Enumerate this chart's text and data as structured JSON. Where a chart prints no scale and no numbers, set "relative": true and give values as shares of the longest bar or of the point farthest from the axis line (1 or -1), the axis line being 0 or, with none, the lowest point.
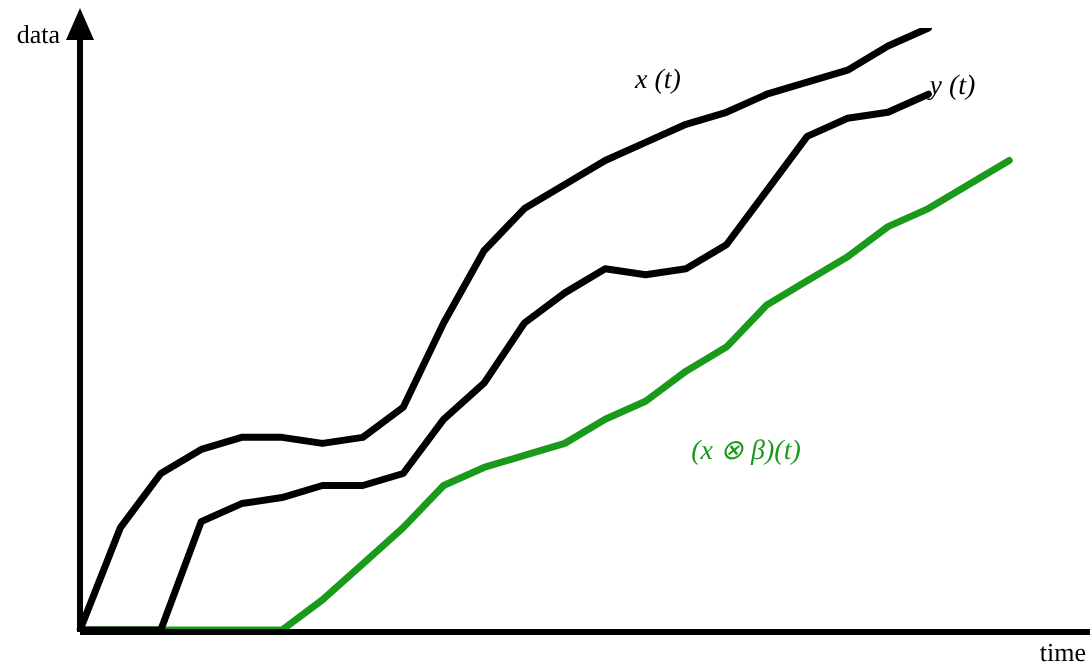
{
  "chart_data": {
    "type": "line",
    "relative": true,
    "xlabel": "time",
    "ylabel": "data",
    "legend": false,
    "marker": "none",
    "line_style": "solid",
    "categories": [
      null,
      null,
      null,
      null,
      null,
      null,
      null,
      null,
      null,
      null,
      null,
      null,
      null,
      null,
      null,
      null,
      null,
      null,
      null,
      null,
      null,
      null,
      null,
      null,
      null,
      null
    ],
    "series": [
      {
        "name": "x (t)",
        "color": "#000000",
        "values": [
          0,
          0.17,
          0.26,
          0.3,
          0.32,
          0.32,
          0.31,
          0.32,
          0.37,
          0.51,
          0.63,
          0.7,
          0.74,
          0.78,
          0.81,
          0.84,
          0.86,
          0.89,
          0.91,
          0.93,
          0.97,
          1.0,
          null,
          null,
          null,
          null
        ]
      },
      {
        "name": "y (t)",
        "color": "#000000",
        "values": [
          0,
          0,
          0,
          0.18,
          0.21,
          0.22,
          0.24,
          0.24,
          0.26,
          0.35,
          0.41,
          0.51,
          0.56,
          0.6,
          0.59,
          0.6,
          0.64,
          0.73,
          0.82,
          0.85,
          0.86,
          0.89,
          null,
          null,
          null,
          null
        ]
      },
      {
        "name": "(x ⊗ β)(t)",
        "color": "#1a9a1a",
        "values": [
          0,
          0,
          0,
          0,
          0,
          0,
          0.05,
          0.11,
          0.17,
          0.24,
          0.27,
          0.29,
          0.31,
          0.35,
          0.38,
          0.43,
          0.47,
          0.54,
          0.58,
          0.62,
          0.67,
          0.7,
          0.74,
          0.78,
          null,
          null
        ]
      }
    ]
  }
}
